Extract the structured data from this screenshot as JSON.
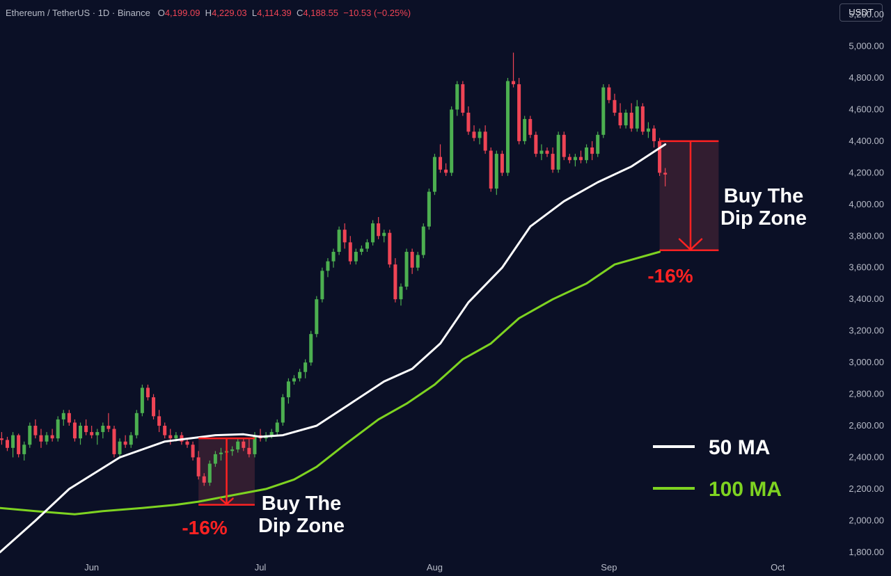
{
  "header": {
    "symbol": "Ethereum / TetherUS · 1D · Binance",
    "open_label": "O",
    "open": "4,199.09",
    "high_label": "H",
    "high": "4,229.03",
    "low_label": "L",
    "low": "4,114.39",
    "close_label": "C",
    "close": "4,188.55",
    "change": "−10.53 (−0.25%)"
  },
  "currency_button": "USDT",
  "chart_data": {
    "type": "candlestick",
    "y_ticks": [
      1800,
      2000,
      2200,
      2400,
      2600,
      2800,
      3000,
      3200,
      3400,
      3600,
      3800,
      4000,
      4200,
      4400,
      4600,
      4800,
      5000,
      5200
    ],
    "ylim": [
      1720,
      5240
    ],
    "x_ticks": [
      {
        "label": "Jun",
        "day": 0
      },
      {
        "label": "Jul",
        "day": 30
      },
      {
        "label": "Aug",
        "day": 61
      },
      {
        "label": "Sep",
        "day": 92
      },
      {
        "label": "Oct",
        "day": 122
      }
    ],
    "x_day_range": [
      -16.3,
      132
    ],
    "colors": {
      "up": "#4caf50",
      "down": "#ef4455",
      "ma50": "#ffffff",
      "ma100": "#7ed321",
      "zone": "#ff2222"
    },
    "candles": [
      [
        -16,
        2520,
        2560,
        2480,
        2510
      ],
      [
        -15,
        2510,
        2530,
        2440,
        2460
      ],
      [
        -14,
        2460,
        2560,
        2400,
        2540
      ],
      [
        -13,
        2540,
        2550,
        2400,
        2420
      ],
      [
        -12,
        2420,
        2500,
        2380,
        2480
      ],
      [
        -11,
        2480,
        2620,
        2460,
        2600
      ],
      [
        -10,
        2600,
        2640,
        2520,
        2540
      ],
      [
        -9,
        2540,
        2580,
        2460,
        2500
      ],
      [
        -8,
        2500,
        2560,
        2480,
        2540
      ],
      [
        -7,
        2540,
        2580,
        2500,
        2520
      ],
      [
        -6,
        2520,
        2660,
        2500,
        2640
      ],
      [
        -5,
        2640,
        2700,
        2600,
        2680
      ],
      [
        -4,
        2680,
        2700,
        2600,
        2620
      ],
      [
        -3,
        2620,
        2640,
        2500,
        2520
      ],
      [
        -2,
        2520,
        2620,
        2480,
        2600
      ],
      [
        -1,
        2600,
        2640,
        2540,
        2560
      ],
      [
        0,
        2560,
        2600,
        2520,
        2540
      ],
      [
        1,
        2540,
        2580,
        2480,
        2560
      ],
      [
        2,
        2560,
        2620,
        2520,
        2600
      ],
      [
        3,
        2600,
        2680,
        2560,
        2580
      ],
      [
        4,
        2580,
        2600,
        2400,
        2420
      ],
      [
        5,
        2420,
        2520,
        2400,
        2500
      ],
      [
        6,
        2500,
        2540,
        2460,
        2480
      ],
      [
        7,
        2480,
        2560,
        2460,
        2540
      ],
      [
        8,
        2540,
        2700,
        2520,
        2680
      ],
      [
        9,
        2680,
        2860,
        2660,
        2840
      ],
      [
        10,
        2840,
        2860,
        2760,
        2780
      ],
      [
        11,
        2780,
        2800,
        2640,
        2660
      ],
      [
        12,
        2660,
        2700,
        2560,
        2600
      ],
      [
        13,
        2600,
        2620,
        2520,
        2540
      ],
      [
        14,
        2540,
        2580,
        2480,
        2520
      ],
      [
        15,
        2520,
        2560,
        2500,
        2540
      ],
      [
        16,
        2540,
        2560,
        2480,
        2500
      ],
      [
        17,
        2500,
        2520,
        2460,
        2480
      ],
      [
        18,
        2480,
        2500,
        2380,
        2400
      ],
      [
        19,
        2400,
        2440,
        2260,
        2280
      ],
      [
        20,
        2280,
        2300,
        2220,
        2240
      ],
      [
        21,
        2240,
        2380,
        2220,
        2360
      ],
      [
        22,
        2360,
        2440,
        2340,
        2420
      ],
      [
        23,
        2420,
        2460,
        2380,
        2430
      ],
      [
        24,
        2430,
        2460,
        2400,
        2440
      ],
      [
        25,
        2440,
        2470,
        2410,
        2450
      ],
      [
        26,
        2450,
        2520,
        2430,
        2500
      ],
      [
        27,
        2500,
        2520,
        2440,
        2460
      ],
      [
        28,
        2460,
        2520,
        2400,
        2420
      ],
      [
        29,
        2420,
        2560,
        2400,
        2540
      ],
      [
        30,
        2540,
        2580,
        2500,
        2520
      ],
      [
        31,
        2520,
        2560,
        2500,
        2540
      ],
      [
        32,
        2540,
        2580,
        2520,
        2560
      ],
      [
        33,
        2560,
        2640,
        2540,
        2620
      ],
      [
        34,
        2620,
        2800,
        2600,
        2780
      ],
      [
        35,
        2780,
        2900,
        2740,
        2880
      ],
      [
        36,
        2880,
        2920,
        2860,
        2900
      ],
      [
        37,
        2900,
        2960,
        2880,
        2940
      ],
      [
        38,
        2940,
        3020,
        2900,
        3000
      ],
      [
        39,
        3000,
        3200,
        2980,
        3180
      ],
      [
        40,
        3180,
        3420,
        3160,
        3400
      ],
      [
        41,
        3400,
        3600,
        3380,
        3580
      ],
      [
        42,
        3580,
        3660,
        3540,
        3640
      ],
      [
        43,
        3640,
        3720,
        3600,
        3700
      ],
      [
        44,
        3700,
        3860,
        3680,
        3840
      ],
      [
        45,
        3840,
        3880,
        3720,
        3760
      ],
      [
        46,
        3760,
        3800,
        3620,
        3640
      ],
      [
        47,
        3640,
        3720,
        3620,
        3700
      ],
      [
        48,
        3700,
        3740,
        3680,
        3720
      ],
      [
        49,
        3720,
        3780,
        3700,
        3760
      ],
      [
        50,
        3760,
        3900,
        3740,
        3880
      ],
      [
        51,
        3880,
        3920,
        3780,
        3800
      ],
      [
        52,
        3800,
        3840,
        3760,
        3820
      ],
      [
        53,
        3820,
        3840,
        3600,
        3620
      ],
      [
        54,
        3620,
        3660,
        3380,
        3400
      ],
      [
        55,
        3400,
        3500,
        3360,
        3480
      ],
      [
        56,
        3480,
        3720,
        3460,
        3700
      ],
      [
        57,
        3700,
        3720,
        3560,
        3600
      ],
      [
        58,
        3600,
        3700,
        3580,
        3680
      ],
      [
        59,
        3680,
        3880,
        3660,
        3860
      ],
      [
        60,
        3860,
        4100,
        3840,
        4080
      ],
      [
        61,
        4080,
        4320,
        4060,
        4300
      ],
      [
        62,
        4300,
        4380,
        4200,
        4220
      ],
      [
        63,
        4220,
        4260,
        4180,
        4200
      ],
      [
        64,
        4200,
        4620,
        4180,
        4600
      ],
      [
        65,
        4600,
        4780,
        4560,
        4760
      ],
      [
        66,
        4760,
        4780,
        4560,
        4580
      ],
      [
        67,
        4580,
        4620,
        4440,
        4460
      ],
      [
        68,
        4460,
        4500,
        4400,
        4420
      ],
      [
        69,
        4420,
        4480,
        4380,
        4460
      ],
      [
        70,
        4460,
        4500,
        4320,
        4340
      ],
      [
        71,
        4340,
        4360,
        4080,
        4100
      ],
      [
        72,
        4100,
        4340,
        4060,
        4320
      ],
      [
        73,
        4320,
        4340,
        4180,
        4200
      ],
      [
        74,
        4200,
        4800,
        4180,
        4780
      ],
      [
        75,
        4780,
        4960,
        4740,
        4760
      ],
      [
        76,
        4760,
        4800,
        4380,
        4400
      ],
      [
        77,
        4400,
        4560,
        4380,
        4540
      ],
      [
        78,
        4540,
        4560,
        4420,
        4440
      ],
      [
        79,
        4440,
        4460,
        4300,
        4320
      ],
      [
        80,
        4320,
        4380,
        4280,
        4340
      ],
      [
        81,
        4340,
        4360,
        4300,
        4320
      ],
      [
        82,
        4320,
        4360,
        4200,
        4220
      ],
      [
        83,
        4220,
        4460,
        4200,
        4440
      ],
      [
        84,
        4440,
        4460,
        4280,
        4300
      ],
      [
        85,
        4300,
        4320,
        4260,
        4280
      ],
      [
        86,
        4280,
        4320,
        4240,
        4300
      ],
      [
        87,
        4300,
        4340,
        4260,
        4280
      ],
      [
        88,
        4280,
        4380,
        4260,
        4360
      ],
      [
        89,
        4360,
        4400,
        4280,
        4320
      ],
      [
        90,
        4320,
        4460,
        4300,
        4440
      ],
      [
        91,
        4440,
        4760,
        4420,
        4740
      ],
      [
        92,
        4740,
        4760,
        4640,
        4660
      ],
      [
        93,
        4660,
        4700,
        4560,
        4580
      ],
      [
        94,
        4580,
        4640,
        4480,
        4500
      ],
      [
        95,
        4500,
        4600,
        4480,
        4580
      ],
      [
        96,
        4580,
        4640,
        4460,
        4480
      ],
      [
        97,
        4480,
        4660,
        4460,
        4620
      ],
      [
        98,
        4620,
        4640,
        4440,
        4460
      ],
      [
        99,
        4460,
        4520,
        4420,
        4480
      ],
      [
        100,
        4480,
        4500,
        4360,
        4400
      ],
      [
        101,
        4400,
        4420,
        4180,
        4200
      ],
      [
        102,
        4200,
        4230,
        4114,
        4189
      ]
    ],
    "ma50": [
      [
        -16.3,
        1800
      ],
      [
        -10,
        2000
      ],
      [
        -4,
        2200
      ],
      [
        5,
        2400
      ],
      [
        13,
        2500
      ],
      [
        22,
        2540
      ],
      [
        27,
        2546
      ],
      [
        30,
        2530
      ],
      [
        34,
        2540
      ],
      [
        40,
        2600
      ],
      [
        46,
        2740
      ],
      [
        52,
        2880
      ],
      [
        57,
        2960
      ],
      [
        62,
        3120
      ],
      [
        67,
        3380
      ],
      [
        73,
        3600
      ],
      [
        78,
        3860
      ],
      [
        84,
        4020
      ],
      [
        90,
        4140
      ],
      [
        96,
        4240
      ],
      [
        102,
        4380
      ]
    ],
    "ma100": [
      [
        -16.3,
        2080
      ],
      [
        -10,
        2060
      ],
      [
        -3,
        2040
      ],
      [
        2,
        2060
      ],
      [
        9,
        2080
      ],
      [
        15,
        2100
      ],
      [
        19,
        2120
      ],
      [
        25,
        2160
      ],
      [
        31,
        2200
      ],
      [
        36,
        2260
      ],
      [
        40,
        2340
      ],
      [
        45,
        2480
      ],
      [
        51,
        2640
      ],
      [
        56,
        2740
      ],
      [
        61,
        2860
      ],
      [
        66,
        3020
      ],
      [
        71,
        3120
      ],
      [
        76,
        3280
      ],
      [
        82,
        3400
      ],
      [
        88,
        3500
      ],
      [
        93,
        3620
      ],
      [
        101,
        3700
      ]
    ],
    "zones": [
      {
        "x_start": 19,
        "x_end": 29,
        "top": 2520,
        "bottom": 2100,
        "arrow_x": 24,
        "label": "Buy The\nDip Zone",
        "pct": "-16%",
        "label_side": "right-below"
      },
      {
        "x_start": 101,
        "x_end": 111.5,
        "top": 4400,
        "bottom": 3710,
        "arrow_x": 106.5,
        "label": "Buy The\nDip Zone",
        "pct": "-16%",
        "label_side": "right"
      }
    ],
    "legend": [
      {
        "label": "50 MA",
        "color": "#ffffff"
      },
      {
        "label": "100 MA",
        "color": "#7ed321"
      }
    ],
    "legend_placement": "bottom-right"
  }
}
